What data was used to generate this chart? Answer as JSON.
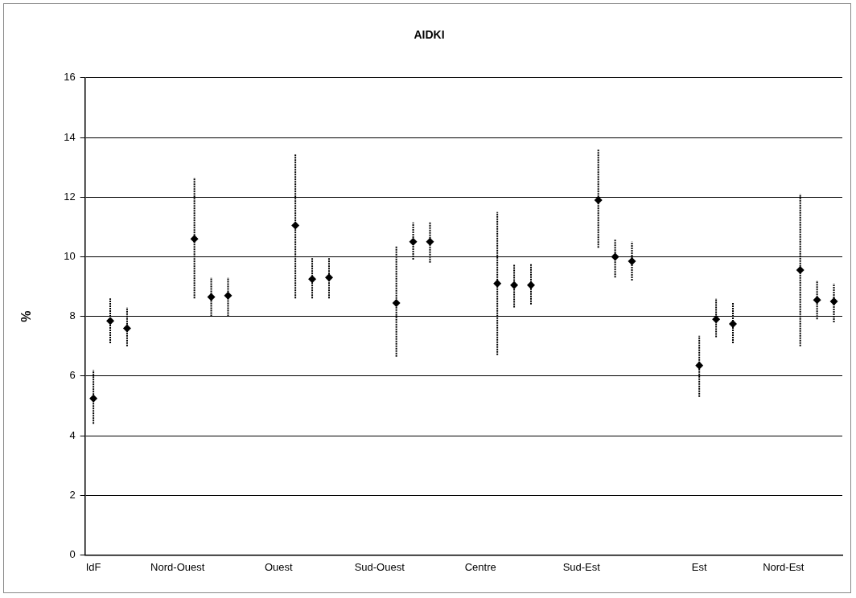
{
  "chart_data": {
    "type": "scatter",
    "title": "AIDKI",
    "ylabel": "%",
    "categories": [
      "IdF",
      null,
      null,
      null,
      null,
      "Nord-Ouest",
      null,
      null,
      null,
      null,
      null,
      "Ouest",
      null,
      null,
      null,
      null,
      null,
      "Sud-Ouest",
      null,
      null,
      null,
      null,
      null,
      "Centre",
      null,
      null,
      null,
      null,
      null,
      "Sud-Est",
      null,
      null,
      null,
      null,
      null,
      null,
      "Est",
      null,
      null,
      null,
      null,
      "Nord-Est",
      null,
      null,
      null
    ],
    "series": [
      {
        "color": "#000000",
        "values": [
          5.25,
          7.85,
          7.6,
          null,
          null,
          null,
          10.6,
          8.65,
          8.7,
          null,
          null,
          null,
          11.05,
          9.25,
          9.3,
          null,
          null,
          null,
          8.45,
          10.5,
          10.5,
          null,
          null,
          null,
          9.1,
          9.05,
          9.05,
          null,
          null,
          null,
          11.9,
          10.0,
          9.85,
          null,
          null,
          null,
          6.35,
          7.9,
          7.75,
          null,
          null,
          null,
          9.55,
          8.55,
          8.5
        ],
        "errors": [
          [
            4.4,
            6.2
          ],
          [
            7.1,
            8.6
          ],
          [
            7.0,
            8.3
          ],
          null,
          null,
          null,
          [
            8.6,
            12.65
          ],
          [
            8.0,
            9.3
          ],
          [
            8.0,
            9.3
          ],
          null,
          null,
          null,
          [
            8.6,
            13.45
          ],
          [
            8.6,
            9.95
          ],
          [
            8.6,
            9.95
          ],
          null,
          null,
          null,
          [
            6.65,
            10.35
          ],
          [
            9.9,
            11.15
          ],
          [
            9.8,
            11.15
          ],
          null,
          null,
          null,
          [
            6.7,
            11.5
          ],
          [
            8.3,
            9.75
          ],
          [
            8.4,
            9.75
          ],
          null,
          null,
          null,
          [
            10.3,
            13.6
          ],
          [
            9.3,
            10.6
          ],
          [
            9.2,
            10.5
          ],
          null,
          null,
          null,
          [
            5.3,
            7.35
          ],
          [
            7.3,
            8.6
          ],
          [
            7.1,
            8.45
          ],
          null,
          null,
          null,
          [
            7.0,
            12.1
          ],
          [
            7.9,
            9.2
          ],
          [
            7.8,
            9.1
          ]
        ]
      }
    ],
    "ylim": [
      0,
      16
    ],
    "yticks": [
      0,
      2,
      4,
      6,
      8,
      10,
      12,
      14,
      16
    ],
    "grid": "y",
    "legend": false,
    "marker": "diamond"
  }
}
